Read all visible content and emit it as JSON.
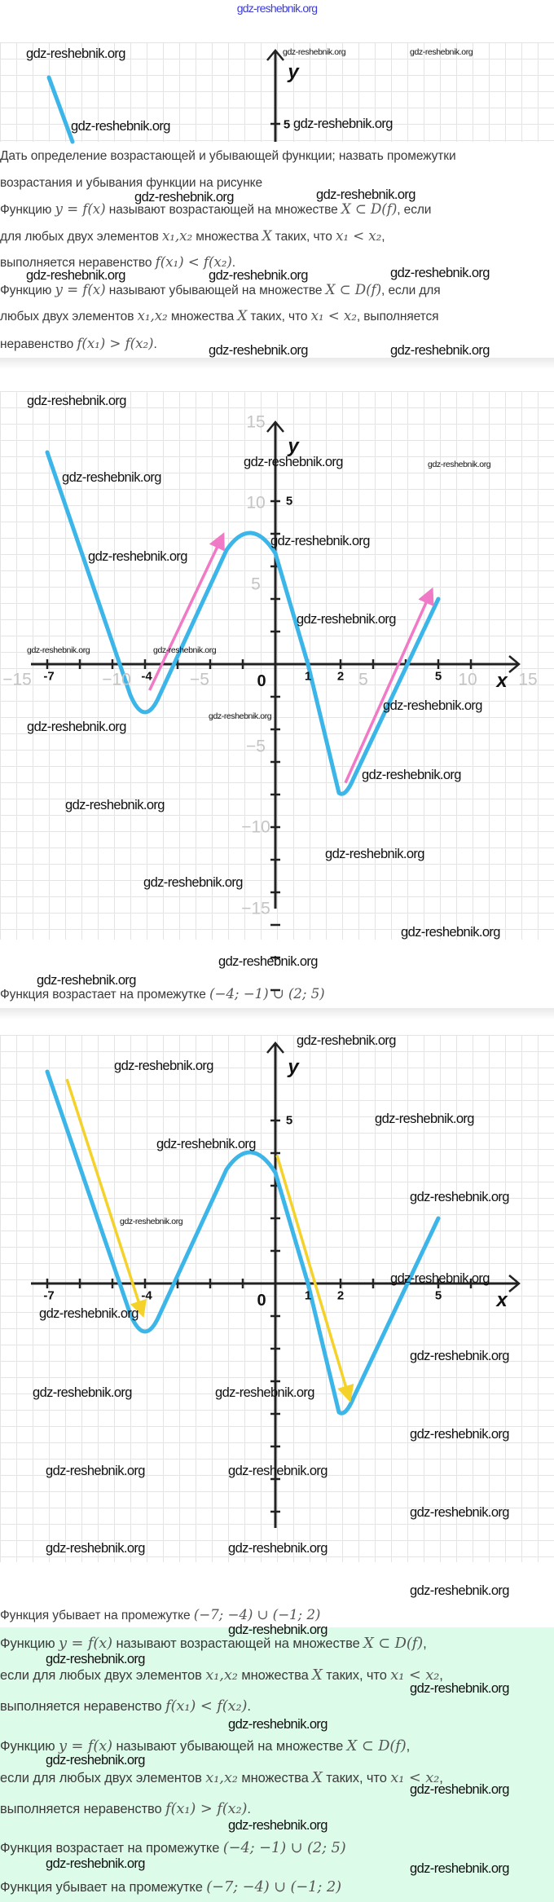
{
  "header": {
    "link_text": "gdz-reshebnik.org"
  },
  "watermark_text": "gdz-reshebnik.org",
  "colors": {
    "curve": "#3cb6e8",
    "increase_arrow": "#f07ac6",
    "decrease_arrow": "#f4d22a",
    "answer_bg": "#dcfbe9"
  },
  "graph_top": {
    "y_tick_label": "5",
    "y_label": "y"
  },
  "question": {
    "lines": [
      [
        {
          "t": "Дать определение возрастающей и убывающей функции; назвать промежутки"
        }
      ],
      [
        {
          "t": "возрастания и убывания функции на рисунке"
        }
      ],
      [
        {
          "t": "Функцию "
        },
        {
          "t": "y = f(x)",
          "m": 1
        },
        {
          "t": " называют возрастающей на множестве "
        },
        {
          "t": "X ⊂ D(f)",
          "m": 1
        },
        {
          "t": ", если"
        }
      ],
      [
        {
          "t": "для любых двух элементов "
        },
        {
          "t": "x₁,x₂",
          "m": 1
        },
        {
          "t": " множества "
        },
        {
          "t": "X",
          "m": 1
        },
        {
          "t": " таких, что "
        },
        {
          "t": "x₁ <  x₂",
          "m": 1
        },
        {
          "t": ","
        }
      ],
      [
        {
          "t": "выполняется неравенство "
        },
        {
          "t": "f(x₁) <  f(x₂)",
          "m": 1
        },
        {
          "t": "."
        }
      ],
      [
        {
          "t": "Функцию "
        },
        {
          "t": "y = f(x)",
          "m": 1
        },
        {
          "t": " называют убывающей на множестве "
        },
        {
          "t": "X ⊂ D(f)",
          "m": 1
        },
        {
          "t": ", если для"
        }
      ],
      [
        {
          "t": "любых двух элементов "
        },
        {
          "t": "x₁,x₂",
          "m": 1
        },
        {
          "t": " множества "
        },
        {
          "t": "X",
          "m": 1
        },
        {
          "t": " таких, что "
        },
        {
          "t": "x₁ <  x₂",
          "m": 1
        },
        {
          "t": ", выполняется"
        }
      ],
      [
        {
          "t": "неравенство "
        },
        {
          "t": "f(x₁) > f(x₂)",
          "m": 1
        },
        {
          "t": "."
        }
      ]
    ]
  },
  "graph_increasing": {
    "x_tick_labels": [
      "-7",
      "-4",
      "0",
      "1",
      "2",
      "5"
    ],
    "y_tick_label": "5",
    "x_label": "x",
    "y_label": "y",
    "background_x_labels": [
      "−15",
      "−10",
      "−5",
      "5",
      "10",
      "15"
    ],
    "background_y_labels": [
      "15",
      "10",
      "5",
      "−5",
      "−10",
      "−15"
    ],
    "curve": [
      [
        -7,
        6.5
      ],
      [
        -4,
        -1.5
      ],
      [
        -0.8,
        4
      ],
      [
        1,
        0
      ],
      [
        2,
        -4
      ],
      [
        5,
        2
      ]
    ],
    "arrows": [
      [
        [
          -3.86,
          -0.8
        ],
        [
          -1.68,
          3.81
        ]
      ],
      [
        [
          2.15,
          -3.64
        ],
        [
          4.73,
          2.12
        ]
      ]
    ]
  },
  "answer_increasing": [
    {
      "t": "Функция возрастает на промежутке "
    },
    {
      "t": "(−4; −1) ∪ (2; 5)",
      "m": 1
    }
  ],
  "graph_decreasing": {
    "x_tick_labels": [
      "-7",
      "-4",
      "0",
      "1",
      "2",
      "5"
    ],
    "y_tick_label": "5",
    "x_label": "x",
    "y_label": "y",
    "arrows": [
      [
        [
          -6.4,
          6.27
        ],
        [
          -4.12,
          -0.8
        ]
      ],
      [
        [
          0.05,
          3.93
        ],
        [
          2.23,
          -3.4
        ]
      ]
    ]
  },
  "answer_decreasing": [
    {
      "t": "Функция убывает на промежутке "
    },
    {
      "t": "(−7; −4) ∪ (−1; 2)",
      "m": 1
    }
  ],
  "summary": {
    "lines": [
      [
        {
          "t": "Функцию "
        },
        {
          "t": "y = f(x)",
          "m": 1
        },
        {
          "t": " называют возрастающей на множестве "
        },
        {
          "t": "X ⊂ D(f)",
          "m": 1
        },
        {
          "t": ","
        }
      ],
      [
        {
          "t": "если для любых двух элементов "
        },
        {
          "t": "x₁,x₂",
          "m": 1
        },
        {
          "t": " множества "
        },
        {
          "t": "X",
          "m": 1
        },
        {
          "t": " таких, что "
        },
        {
          "t": "x₁ <  x₂",
          "m": 1
        },
        {
          "t": ","
        }
      ],
      [
        {
          "t": "выполняется неравенство "
        },
        {
          "t": "f(x₁) <  f(x₂)",
          "m": 1
        },
        {
          "t": "."
        }
      ],
      [
        {
          "t": "Функцию "
        },
        {
          "t": "y = f(x)",
          "m": 1
        },
        {
          "t": " называют убывающей на множестве "
        },
        {
          "t": "X ⊂ D(f)",
          "m": 1
        },
        {
          "t": ","
        }
      ],
      [
        {
          "t": "если для любых двух элементов "
        },
        {
          "t": "x₁,x₂",
          "m": 1
        },
        {
          "t": " множества "
        },
        {
          "t": "X",
          "m": 1
        },
        {
          "t": " таких, что "
        },
        {
          "t": "x₁ <  x₂",
          "m": 1
        },
        {
          "t": ","
        }
      ],
      [
        {
          "t": "выполняется неравенство "
        },
        {
          "t": "f(x₁) > f(x₂)",
          "m": 1
        },
        {
          "t": "."
        }
      ],
      [
        {
          "t": "Функция возрастает на промежутке "
        },
        {
          "t": "(−4; −1) ∪ (2; 5)",
          "m": 1
        }
      ],
      [
        {
          "t": "Функция убывает на промежутке "
        },
        {
          "t": "(−7; −4) ∪ (−1; 2)",
          "m": 1
        }
      ]
    ]
  }
}
